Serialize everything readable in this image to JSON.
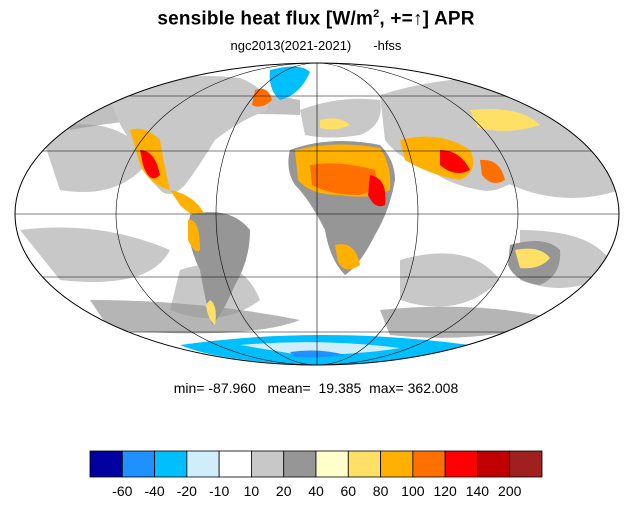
{
  "title": {
    "main": "sensible heat flux [W/m",
    "sup": "2",
    "rest": ", +=↑]  APR"
  },
  "subtitle": {
    "run": "ngc2013(2021-2021)",
    "variable": "-hfss"
  },
  "stats": {
    "min": "min= -87.960",
    "mean": "mean=  19.385",
    "max": "max= 362.008"
  },
  "colorbar": {
    "colors": [
      "#0000a0",
      "#1e90ff",
      "#00bfff",
      "#cfeefa",
      "#ffffff",
      "#c8c8c8",
      "#969696",
      "#ffffcc",
      "#ffe066",
      "#ffb000",
      "#ff7000",
      "#ff0000",
      "#c00000",
      "#a02020"
    ],
    "labels": [
      "-60",
      "-40",
      "-20",
      "-10",
      "10",
      "20",
      "40",
      "60",
      "80",
      "100",
      "120",
      "140",
      "200"
    ]
  },
  "map": {
    "projection": "Mollweide",
    "ocean_color": "#ffffff",
    "land_color_default": "#c8c8c8",
    "outline_color": "#000000"
  }
}
